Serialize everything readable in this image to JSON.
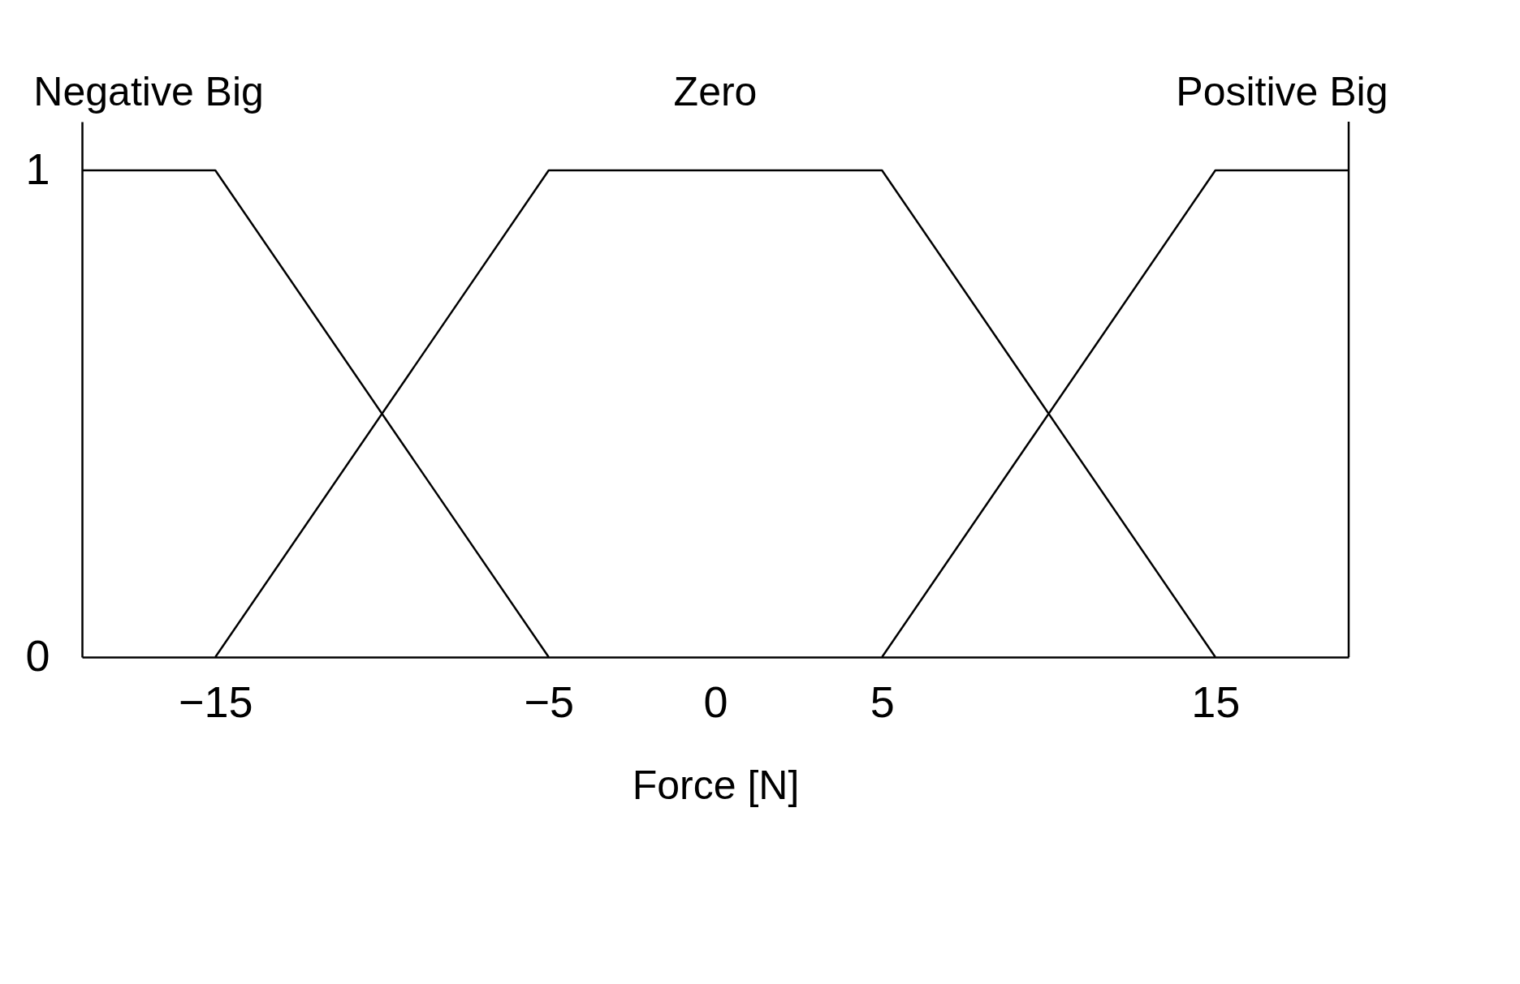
{
  "chart_data": {
    "type": "line",
    "xlabel": "Force [N]",
    "series": [
      {
        "name": "Negative Big",
        "color": "#000000",
        "x": [
          -19,
          -15,
          -5
        ],
        "values": [
          1,
          1,
          0
        ]
      },
      {
        "name": "Zero",
        "color": "#000000",
        "x": [
          -15,
          -5,
          5,
          15
        ],
        "values": [
          0,
          1,
          1,
          0
        ]
      },
      {
        "name": "Positive Big",
        "color": "#000000",
        "x": [
          5,
          15,
          19
        ],
        "values": [
          0,
          1,
          1
        ]
      }
    ],
    "xlim": [
      -19,
      19
    ],
    "xticks": [
      -15,
      -5,
      0,
      5,
      15
    ],
    "ylim": [
      0,
      1.1
    ],
    "yticks": [
      0,
      1
    ],
    "grid": false,
    "marker": "none",
    "line_style": "solid"
  }
}
